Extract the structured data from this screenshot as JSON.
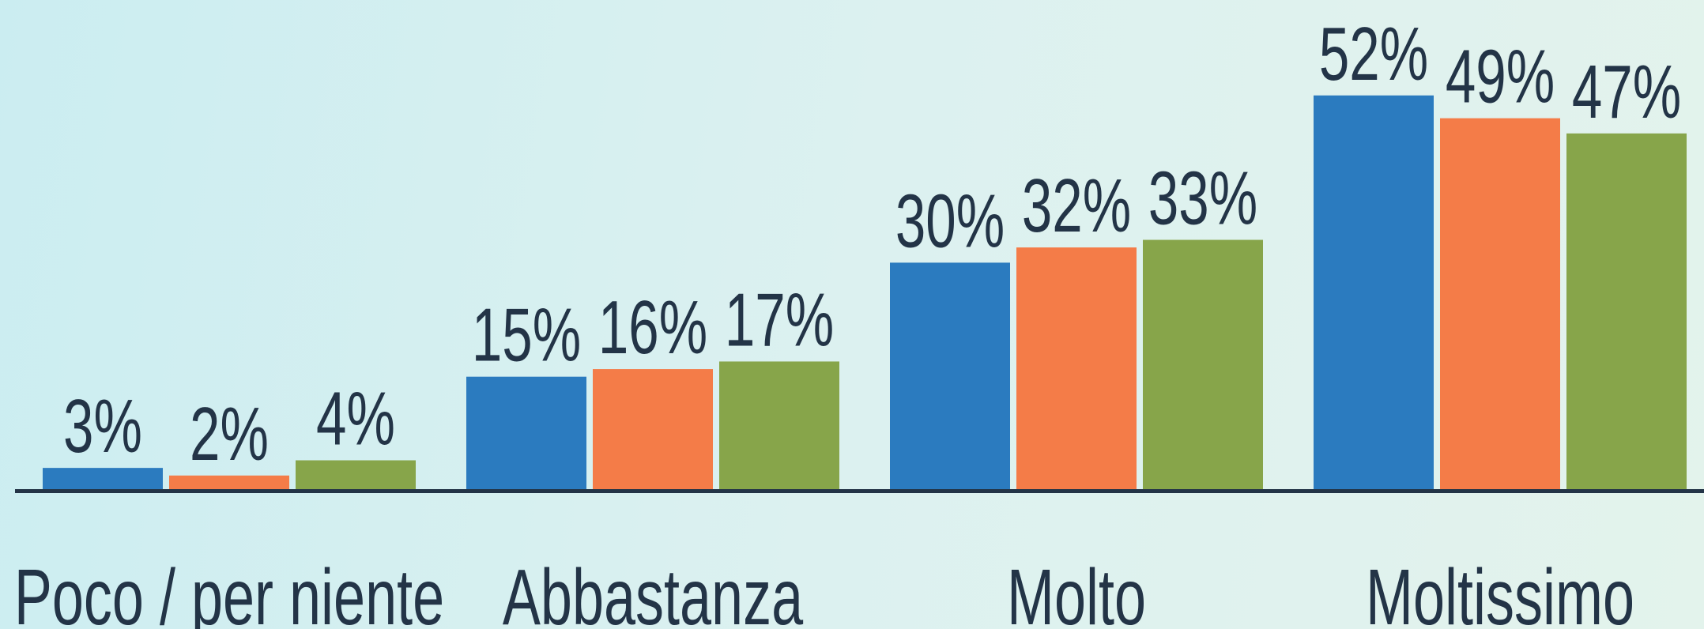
{
  "chart_data": {
    "type": "bar",
    "categories": [
      "Poco / per niente",
      "Abbastanza",
      "Molto",
      "Moltissimo"
    ],
    "series": [
      {
        "color": "#2b7bbf",
        "values": [
          3,
          15,
          30,
          52
        ],
        "value_labels": [
          "3%",
          "15%",
          "30%",
          "52%"
        ]
      },
      {
        "color": "#f47c48",
        "values": [
          2,
          16,
          32,
          49
        ],
        "value_labels": [
          "2%",
          "16%",
          "32%",
          "49%"
        ]
      },
      {
        "color": "#87a54a",
        "values": [
          4,
          17,
          33,
          47
        ],
        "value_labels": [
          "4%",
          "17%",
          "33%",
          "47%"
        ]
      }
    ]
  }
}
